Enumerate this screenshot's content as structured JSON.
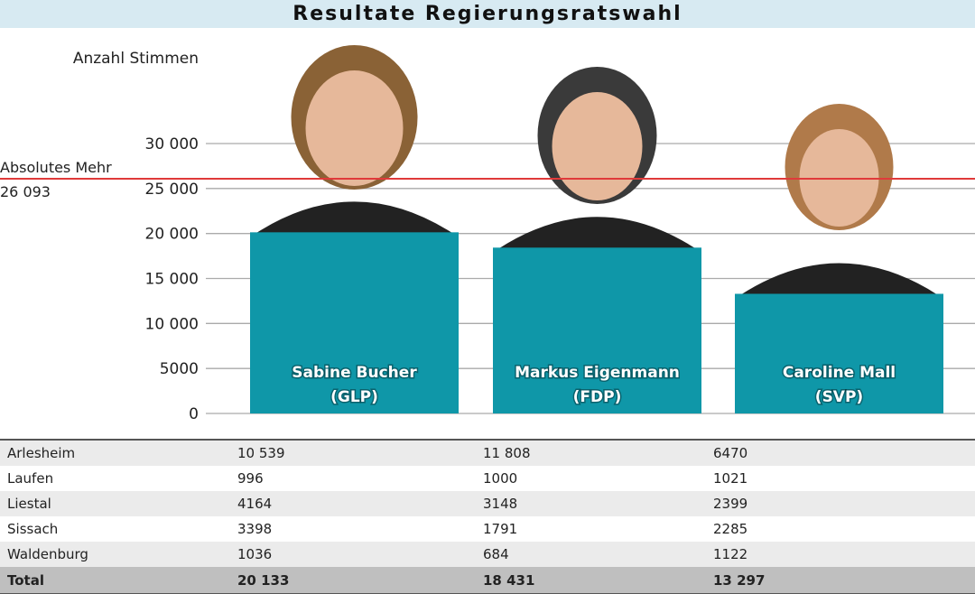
{
  "title": "Resultate Regierungsratswahl",
  "chart_data": {
    "type": "bar",
    "title": "Resultate Regierungsratswahl",
    "ylabel": "Anzahl Stimmen",
    "ylim": [
      0,
      30000
    ],
    "yticks": [
      0,
      5000,
      10000,
      15000,
      20000,
      25000,
      30000
    ],
    "ytick_labels": [
      "0",
      "5000",
      "10 000",
      "15 000",
      "20 000",
      "25 000",
      "30 000"
    ],
    "grid": true,
    "categories": [
      "Sabine Bucher (GLP)",
      "Markus Eigenmann (FDP)",
      "Caroline Mall (SVP)"
    ],
    "bar_labels": [
      [
        "Sabine Bucher",
        "(GLP)"
      ],
      [
        "Markus Eigenmann",
        "(FDP)"
      ],
      [
        "Caroline Mall",
        "(SVP)"
      ]
    ],
    "values": [
      20133,
      18431,
      13297
    ],
    "reference_line": {
      "label": "Absolutes Mehr",
      "value_label": "26 093",
      "value": 26093,
      "color": "#e03a3a"
    },
    "bar_color": "#0f97a8"
  },
  "table": {
    "rows": [
      [
        "Arlesheim",
        "10 539",
        "11 808",
        "6470"
      ],
      [
        "Laufen",
        "996",
        "1000",
        "1021"
      ],
      [
        "Liestal",
        "4164",
        "3148",
        "2399"
      ],
      [
        "Sissach",
        "3398",
        "1791",
        "2285"
      ],
      [
        "Waldenburg",
        "1036",
        "684",
        "1122"
      ]
    ],
    "total": [
      "Total",
      "20 133",
      "18 431",
      "13 297"
    ]
  }
}
